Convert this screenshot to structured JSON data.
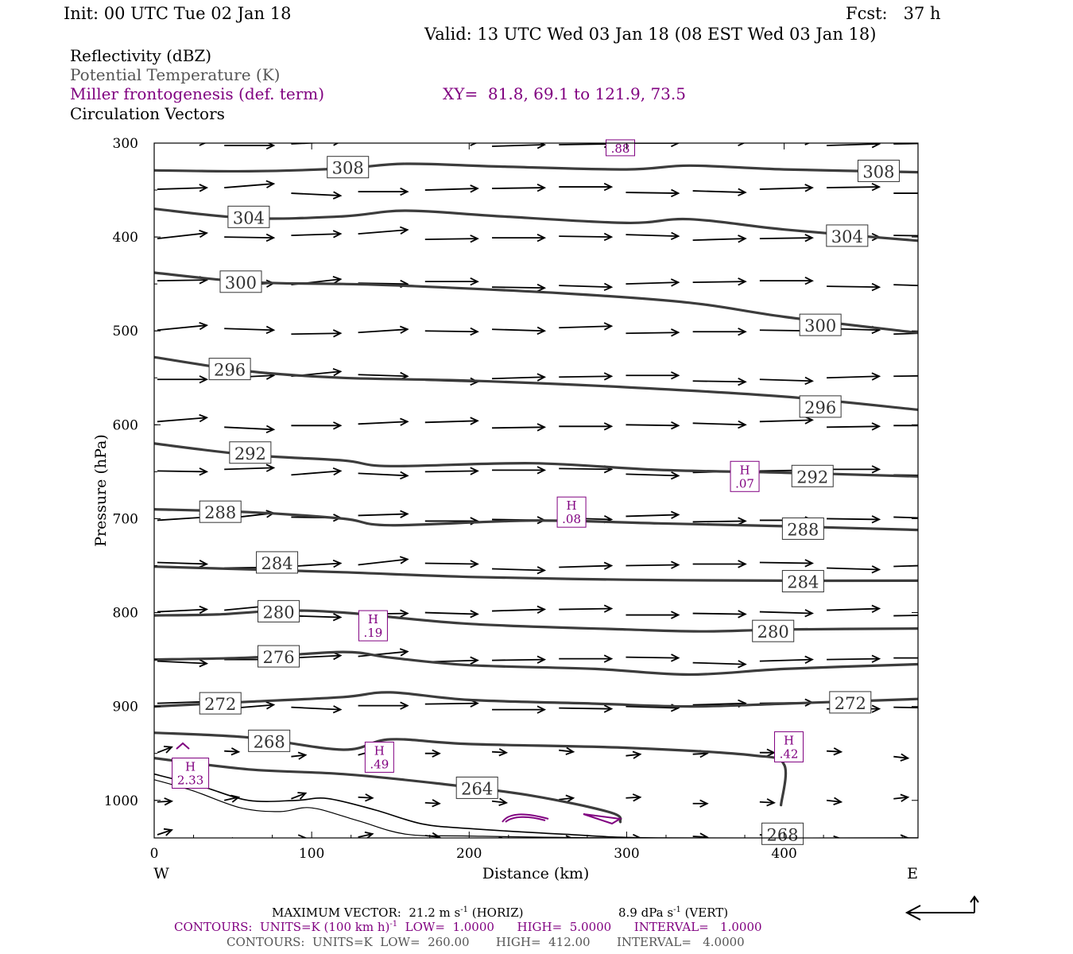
{
  "header": {
    "init": "Init: 00 UTC Tue 02 Jan 18",
    "fcst": "Fcst:   37 h",
    "valid": "Valid: 13 UTC Wed 03 Jan 18 (08 EST Wed 03 Jan 18)"
  },
  "legend": {
    "reflectivity": "Reflectivity (dBZ)",
    "theta": "Potential Temperature (K)",
    "miller": "Miller frontogenesis (def. term)",
    "xy": "XY=  81.8, 69.1 to 121.9, 73.5",
    "vectors": "Circulation Vectors"
  },
  "colors": {
    "theta": "#3c3c3c",
    "frontogenesis": "#800080",
    "vectors": "#000000"
  },
  "footer": {
    "max_vector": "MAXIMUM VECTOR:  21.2 m s",
    "max_vector_unit_exp": "-1",
    "max_vector_horiz": " (HORIZ)",
    "max_vector_vert": "8.9 dPa s",
    "max_vector_vert_exp": "-1",
    "max_vector_vert_tail": " (VERT)",
    "contours1_a": "CONTOURS:  UNITS=K (100 km h)",
    "contours1_exp": "-1",
    "contours1_b": "  LOW=  1.0000      HIGH=  5.0000      INTERVAL=   1.0000",
    "contours2": "CONTOURS:  UNITS=K  LOW=  260.00       HIGH=  412.00       INTERVAL=   4.0000"
  },
  "chart_data": {
    "type": "line",
    "xlabel": "Distance (km)",
    "ylabel": "Pressure (hPa)",
    "xlim": [
      0,
      485
    ],
    "ylim": [
      1040,
      300
    ],
    "x_ticks": [
      0,
      100,
      200,
      300,
      400
    ],
    "y_ticks": [
      300,
      400,
      500,
      600,
      700,
      800,
      900,
      1000
    ],
    "x_end_labels": {
      "left": "W",
      "right": "E"
    },
    "theta_contours": [
      {
        "name": "308",
        "label_at": [
          [
            123,
            326
          ],
          [
            460,
            330
          ]
        ],
        "points": [
          [
            0,
            329
          ],
          [
            60,
            330
          ],
          [
            120,
            327
          ],
          [
            160,
            322
          ],
          [
            220,
            325
          ],
          [
            300,
            328
          ],
          [
            340,
            324
          ],
          [
            400,
            328
          ],
          [
            485,
            331
          ]
        ]
      },
      {
        "name": "304",
        "label_at": [
          [
            60,
            379
          ],
          [
            440,
            399
          ]
        ],
        "points": [
          [
            0,
            370
          ],
          [
            60,
            380
          ],
          [
            120,
            378
          ],
          [
            160,
            372
          ],
          [
            220,
            378
          ],
          [
            300,
            385
          ],
          [
            340,
            381
          ],
          [
            400,
            392
          ],
          [
            485,
            404
          ]
        ]
      },
      {
        "name": "300",
        "label_at": [
          [
            55,
            448
          ],
          [
            423,
            494
          ]
        ],
        "points": [
          [
            0,
            438
          ],
          [
            60,
            448
          ],
          [
            120,
            450
          ],
          [
            160,
            452
          ],
          [
            260,
            460
          ],
          [
            340,
            470
          ],
          [
            400,
            485
          ],
          [
            485,
            502
          ]
        ]
      },
      {
        "name": "296",
        "label_at": [
          [
            48,
            541
          ],
          [
            423,
            581
          ]
        ],
        "points": [
          [
            0,
            528
          ],
          [
            60,
            543
          ],
          [
            120,
            550
          ],
          [
            200,
            553
          ],
          [
            300,
            560
          ],
          [
            400,
            570
          ],
          [
            485,
            584
          ]
        ]
      },
      {
        "name": "292",
        "label_at": [
          [
            61,
            630
          ],
          [
            418,
            655
          ]
        ],
        "points": [
          [
            0,
            620
          ],
          [
            60,
            632
          ],
          [
            120,
            638
          ],
          [
            150,
            644
          ],
          [
            240,
            641
          ],
          [
            320,
            648
          ],
          [
            400,
            651
          ],
          [
            485,
            655
          ]
        ]
      },
      {
        "name": "288",
        "label_at": [
          [
            42,
            693
          ],
          [
            412,
            711
          ]
        ],
        "points": [
          [
            0,
            690
          ],
          [
            60,
            693
          ],
          [
            120,
            700
          ],
          [
            150,
            707
          ],
          [
            240,
            702
          ],
          [
            320,
            705
          ],
          [
            400,
            708
          ],
          [
            485,
            712
          ]
        ]
      },
      {
        "name": "284",
        "label_at": [
          [
            78,
            747
          ],
          [
            412,
            767
          ]
        ],
        "points": [
          [
            0,
            751
          ],
          [
            60,
            754
          ],
          [
            120,
            757
          ],
          [
            200,
            762
          ],
          [
            300,
            765
          ],
          [
            400,
            766
          ],
          [
            485,
            766
          ]
        ]
      },
      {
        "name": "280",
        "label_at": [
          [
            79,
            799
          ],
          [
            393,
            820
          ]
        ],
        "points": [
          [
            0,
            803
          ],
          [
            40,
            802
          ],
          [
            80,
            798
          ],
          [
            120,
            800
          ],
          [
            200,
            812
          ],
          [
            300,
            818
          ],
          [
            350,
            820
          ],
          [
            400,
            818
          ],
          [
            485,
            817
          ]
        ]
      },
      {
        "name": "276",
        "label_at": [
          [
            79,
            847
          ],
          [
            0,
            0
          ]
        ],
        "points": [
          [
            0,
            850
          ],
          [
            60,
            848
          ],
          [
            120,
            842
          ],
          [
            150,
            848
          ],
          [
            200,
            856
          ],
          [
            280,
            860
          ],
          [
            340,
            866
          ],
          [
            400,
            860
          ],
          [
            485,
            855
          ]
        ]
      },
      {
        "name": "272",
        "label_at": [
          [
            42,
            897
          ],
          [
            442,
            896
          ]
        ],
        "points": [
          [
            0,
            900
          ],
          [
            60,
            895
          ],
          [
            120,
            890
          ],
          [
            150,
            885
          ],
          [
            200,
            893
          ],
          [
            280,
            897
          ],
          [
            340,
            900
          ],
          [
            400,
            897
          ],
          [
            485,
            892
          ]
        ]
      },
      {
        "name": "268",
        "label_at": [
          [
            73,
            937
          ],
          [
            399,
            1036
          ]
        ],
        "points": [
          [
            0,
            928
          ],
          [
            60,
            933
          ],
          [
            120,
            946
          ],
          [
            150,
            935
          ],
          [
            200,
            940
          ],
          [
            300,
            944
          ],
          [
            380,
            952
          ],
          [
            400,
            962
          ],
          [
            398,
            1005
          ]
        ]
      },
      {
        "name": "264",
        "label_at": [
          [
            205,
            987
          ],
          [
            0,
            0
          ]
        ],
        "points": [
          [
            0,
            955
          ],
          [
            60,
            967
          ],
          [
            120,
            972
          ],
          [
            180,
            982
          ],
          [
            240,
            995
          ],
          [
            290,
            1013
          ],
          [
            296,
            1023
          ]
        ]
      }
    ],
    "frontogenesis_highs": [
      {
        "label": "H",
        "value": ".88",
        "x": 296,
        "p": 305
      },
      {
        "label": "H",
        "value": ".07",
        "x": 375,
        "p": 655
      },
      {
        "label": "H",
        "value": ".08",
        "x": 265,
        "p": 693
      },
      {
        "label": "H",
        "value": ".19",
        "x": 139,
        "p": 814
      },
      {
        "label": "H",
        "value": ".42",
        "x": 403,
        "p": 943
      },
      {
        "label": "H",
        "value": ".49",
        "x": 143,
        "p": 954
      },
      {
        "label": "H",
        "value": "2.33",
        "x": 23,
        "p": 971
      }
    ],
    "vector_rows": [
      300,
      350,
      400,
      450,
      500,
      550,
      600,
      650,
      700,
      750,
      800,
      850,
      900,
      950,
      1000,
      1040
    ],
    "grid": false
  }
}
